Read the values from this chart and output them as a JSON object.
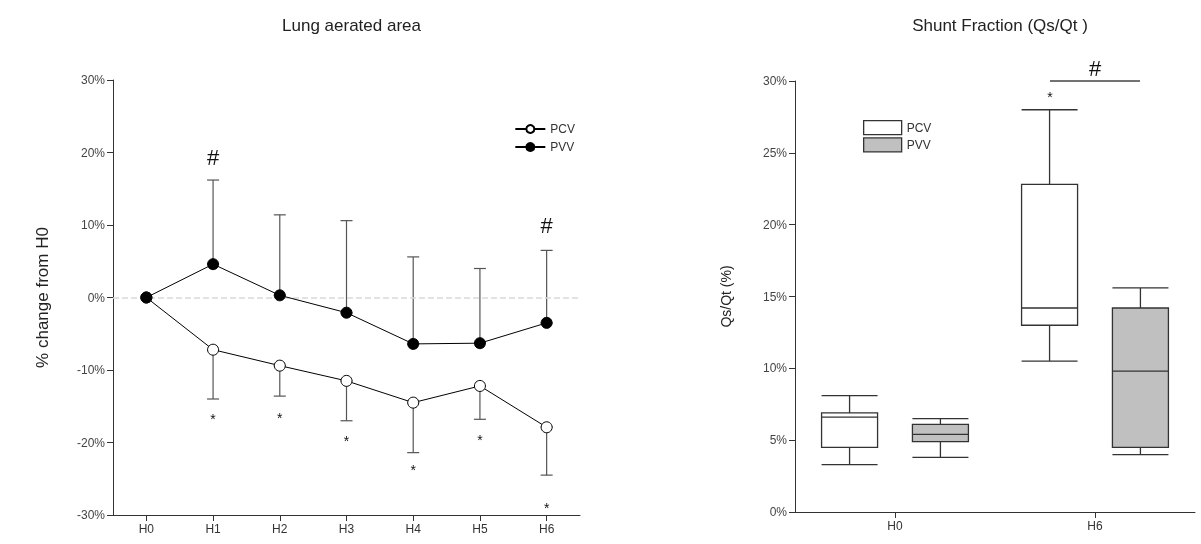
{
  "chart_data": [
    {
      "type": "line",
      "title": "Lung aerated area",
      "ylabel": "% change from H0",
      "categories": [
        "H0",
        "H1",
        "H2",
        "H3",
        "H4",
        "H5",
        "H6"
      ],
      "series": [
        {
          "name": "PCV",
          "color": "#ffffff",
          "values": [
            0,
            -7.2,
            -9.4,
            -11.5,
            -14.5,
            -12.2,
            -17.9
          ],
          "errors": [
            null,
            [
              -14,
              -7.2
            ],
            [
              -13.6,
              -9.4
            ],
            [
              -17,
              -11.5
            ],
            [
              -21.4,
              -14.5
            ],
            [
              -16.8,
              -12.2
            ],
            [
              -24.5,
              -17.9
            ]
          ]
        },
        {
          "name": "PVV",
          "color": "#000000",
          "values": [
            0,
            4.6,
            0.3,
            -2.1,
            -6.4,
            -6.3,
            -3.5
          ],
          "errors": [
            null,
            [
              4.6,
              16.2
            ],
            [
              0.3,
              11.4
            ],
            [
              -2.1,
              10.6
            ],
            [
              -6.4,
              5.6
            ],
            [
              -6.3,
              4.0
            ],
            [
              -3.5,
              6.5
            ]
          ]
        }
      ],
      "ylim": [
        -30,
        30
      ],
      "yticks": [
        {
          "value": -30,
          "label": "-30%"
        },
        {
          "value": -20,
          "label": "-20%"
        },
        {
          "value": -10,
          "label": "-10%"
        },
        {
          "value": 0,
          "label": "0%"
        },
        {
          "value": 10,
          "label": "10%"
        },
        {
          "value": 20,
          "label": "20%"
        },
        {
          "value": 30,
          "label": "30%"
        }
      ],
      "ref_lines": [
        {
          "axis": "y",
          "value": 0,
          "color": "#d9d9d9",
          "line_style": "dashed"
        }
      ],
      "annotations": [
        "#",
        "#",
        "*",
        "*",
        "*",
        "*",
        "*",
        "*"
      ],
      "marker": "circle",
      "line_style": "solid",
      "grid": false,
      "legend": "top right"
    },
    {
      "type": "box",
      "title": "Shunt Fraction (Qs/Qt )",
      "ylabel": "Qs/Qt (%)",
      "categories": [
        "H0",
        "H6"
      ],
      "series": [
        {
          "name": "PCV",
          "color": "#ffffff",
          "boxes": [
            {
              "low": 3.3,
              "q1": 4.5,
              "median": 6.6,
              "q3": 6.9,
              "high": 8.1
            },
            {
              "low": 10.5,
              "q1": 13.0,
              "median": 14.2,
              "q3": 22.8,
              "high": 28.0
            }
          ]
        },
        {
          "name": "PVV",
          "color": "#c0c0c0",
          "boxes": [
            {
              "low": 3.8,
              "q1": 4.9,
              "median": 5.4,
              "q3": 6.1,
              "high": 6.5
            },
            {
              "low": 4.0,
              "q1": 4.5,
              "median": 9.8,
              "q3": 14.2,
              "high": 15.6
            }
          ]
        }
      ],
      "ylim": [
        0,
        30
      ],
      "yticks": [
        {
          "value": 0,
          "label": "0%"
        },
        {
          "value": 5,
          "label": "5%"
        },
        {
          "value": 10,
          "label": "10%"
        },
        {
          "value": 15,
          "label": "15%"
        },
        {
          "value": 20,
          "label": "20%"
        },
        {
          "value": 25,
          "label": "25%"
        },
        {
          "value": 30,
          "label": "30%"
        }
      ],
      "annotations": [
        "*",
        "#"
      ],
      "grid": false,
      "legend": "top left"
    }
  ]
}
